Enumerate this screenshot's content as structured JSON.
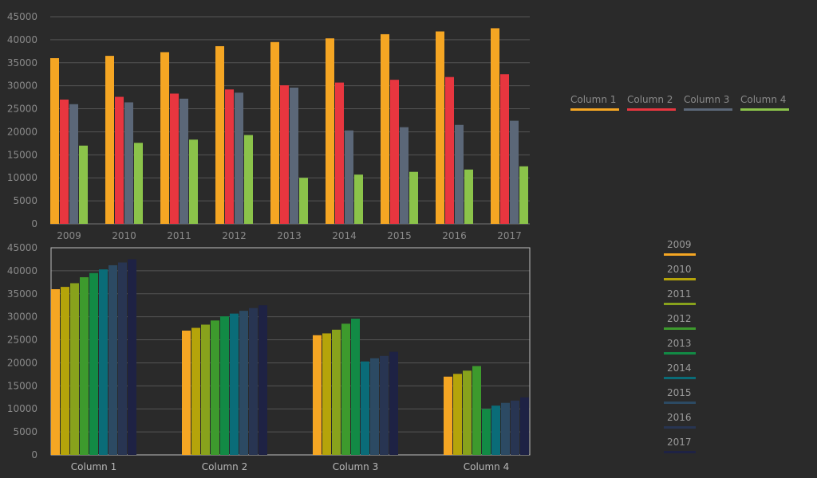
{
  "chart_data": [
    {
      "type": "bar",
      "categories": [
        "2009",
        "2010",
        "2011",
        "2012",
        "2013",
        "2014",
        "2015",
        "2016",
        "2017"
      ],
      "series": [
        {
          "name": "Column 1",
          "color": "#f5a623",
          "values": [
            36000,
            36500,
            37300,
            38600,
            39500,
            40300,
            41200,
            41800,
            42500
          ]
        },
        {
          "name": "Column 2",
          "color": "#e8363f",
          "values": [
            27000,
            27600,
            28300,
            29200,
            30100,
            30700,
            31300,
            31900,
            32500
          ]
        },
        {
          "name": "Column 3",
          "color": "#5b6778",
          "values": [
            26000,
            26400,
            27200,
            28500,
            29600,
            20300,
            21000,
            21500,
            22400
          ]
        },
        {
          "name": "Column 4",
          "color": "#8bc34a",
          "values": [
            17000,
            17600,
            18300,
            19300,
            10000,
            10700,
            11300,
            11800,
            12500
          ]
        }
      ],
      "ylim": [
        0,
        45000
      ],
      "yticks": [
        0,
        5000,
        10000,
        15000,
        20000,
        25000,
        30000,
        35000,
        40000,
        45000
      ],
      "grid": true,
      "legend": "right"
    },
    {
      "type": "bar",
      "categories": [
        "Column 1",
        "Column 2",
        "Column 3",
        "Column 4"
      ],
      "series": [
        {
          "name": "2009",
          "color": "#f5a623",
          "values": [
            36000,
            27000,
            26000,
            17000
          ]
        },
        {
          "name": "2010",
          "color": "#b5a40a",
          "values": [
            36500,
            27600,
            26400,
            17600
          ]
        },
        {
          "name": "2011",
          "color": "#88a21c",
          "values": [
            37300,
            28300,
            27200,
            18300
          ]
        },
        {
          "name": "2012",
          "color": "#3d9a2d",
          "values": [
            38600,
            29200,
            28500,
            19300
          ]
        },
        {
          "name": "2013",
          "color": "#128a45",
          "values": [
            39500,
            30100,
            29600,
            10000
          ]
        },
        {
          "name": "2014",
          "color": "#0a6c78",
          "values": [
            40300,
            30700,
            20300,
            10700
          ]
        },
        {
          "name": "2015",
          "color": "#2c4a63",
          "values": [
            41200,
            31300,
            21000,
            11300
          ]
        },
        {
          "name": "2016",
          "color": "#283552",
          "values": [
            41800,
            31900,
            21500,
            11800
          ]
        },
        {
          "name": "2017",
          "color": "#1e2244",
          "values": [
            42500,
            32500,
            22400,
            12500
          ]
        }
      ],
      "ylim": [
        0,
        45000
      ],
      "yticks": [
        0,
        5000,
        10000,
        15000,
        20000,
        25000,
        30000,
        35000,
        40000,
        45000
      ],
      "grid": true,
      "legend": "right"
    }
  ]
}
